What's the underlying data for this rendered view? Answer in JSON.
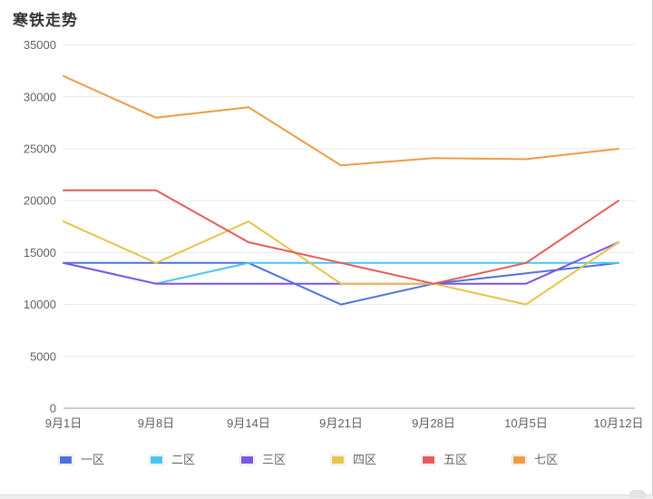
{
  "page": {
    "title": "寒铁走势"
  },
  "chart_data": {
    "type": "line",
    "title": "寒铁走势",
    "categories": [
      "9月1日",
      "9月8日",
      "9月14日",
      "9月21日",
      "9月28日",
      "10月5日",
      "10月12日"
    ],
    "series": [
      {
        "name": "一区",
        "color": "#4C71E0",
        "values": [
          14000,
          14000,
          14000,
          10000,
          12000,
          13000,
          14000
        ]
      },
      {
        "name": "二区",
        "color": "#49C4F1",
        "values": [
          14000,
          12000,
          14000,
          14000,
          14000,
          14000,
          14000
        ]
      },
      {
        "name": "三区",
        "color": "#7B55E3",
        "values": [
          14000,
          12000,
          12000,
          12000,
          12000,
          12000,
          16000
        ]
      },
      {
        "name": "四区",
        "color": "#E5C34D",
        "values": [
          18000,
          14000,
          18000,
          12000,
          12000,
          10000,
          16000
        ]
      },
      {
        "name": "五区",
        "color": "#E45B5C",
        "values": [
          21000,
          21000,
          16000,
          14000,
          12000,
          14000,
          20000
        ]
      },
      {
        "name": "七区",
        "color": "#EE9B44",
        "values": [
          32000,
          28000,
          29000,
          23400,
          24100,
          24000,
          25000
        ]
      }
    ],
    "ylim": [
      0,
      35000
    ],
    "y_ticks": [
      0,
      5000,
      10000,
      15000,
      20000,
      25000,
      30000,
      35000
    ],
    "grid": true,
    "legend_position": "bottom",
    "colors": {
      "grid_line": "#e8e8e8",
      "axis_line": "#999999",
      "tick_label": "#606060",
      "title_text": "#333333",
      "legend_text": "#666666"
    }
  }
}
